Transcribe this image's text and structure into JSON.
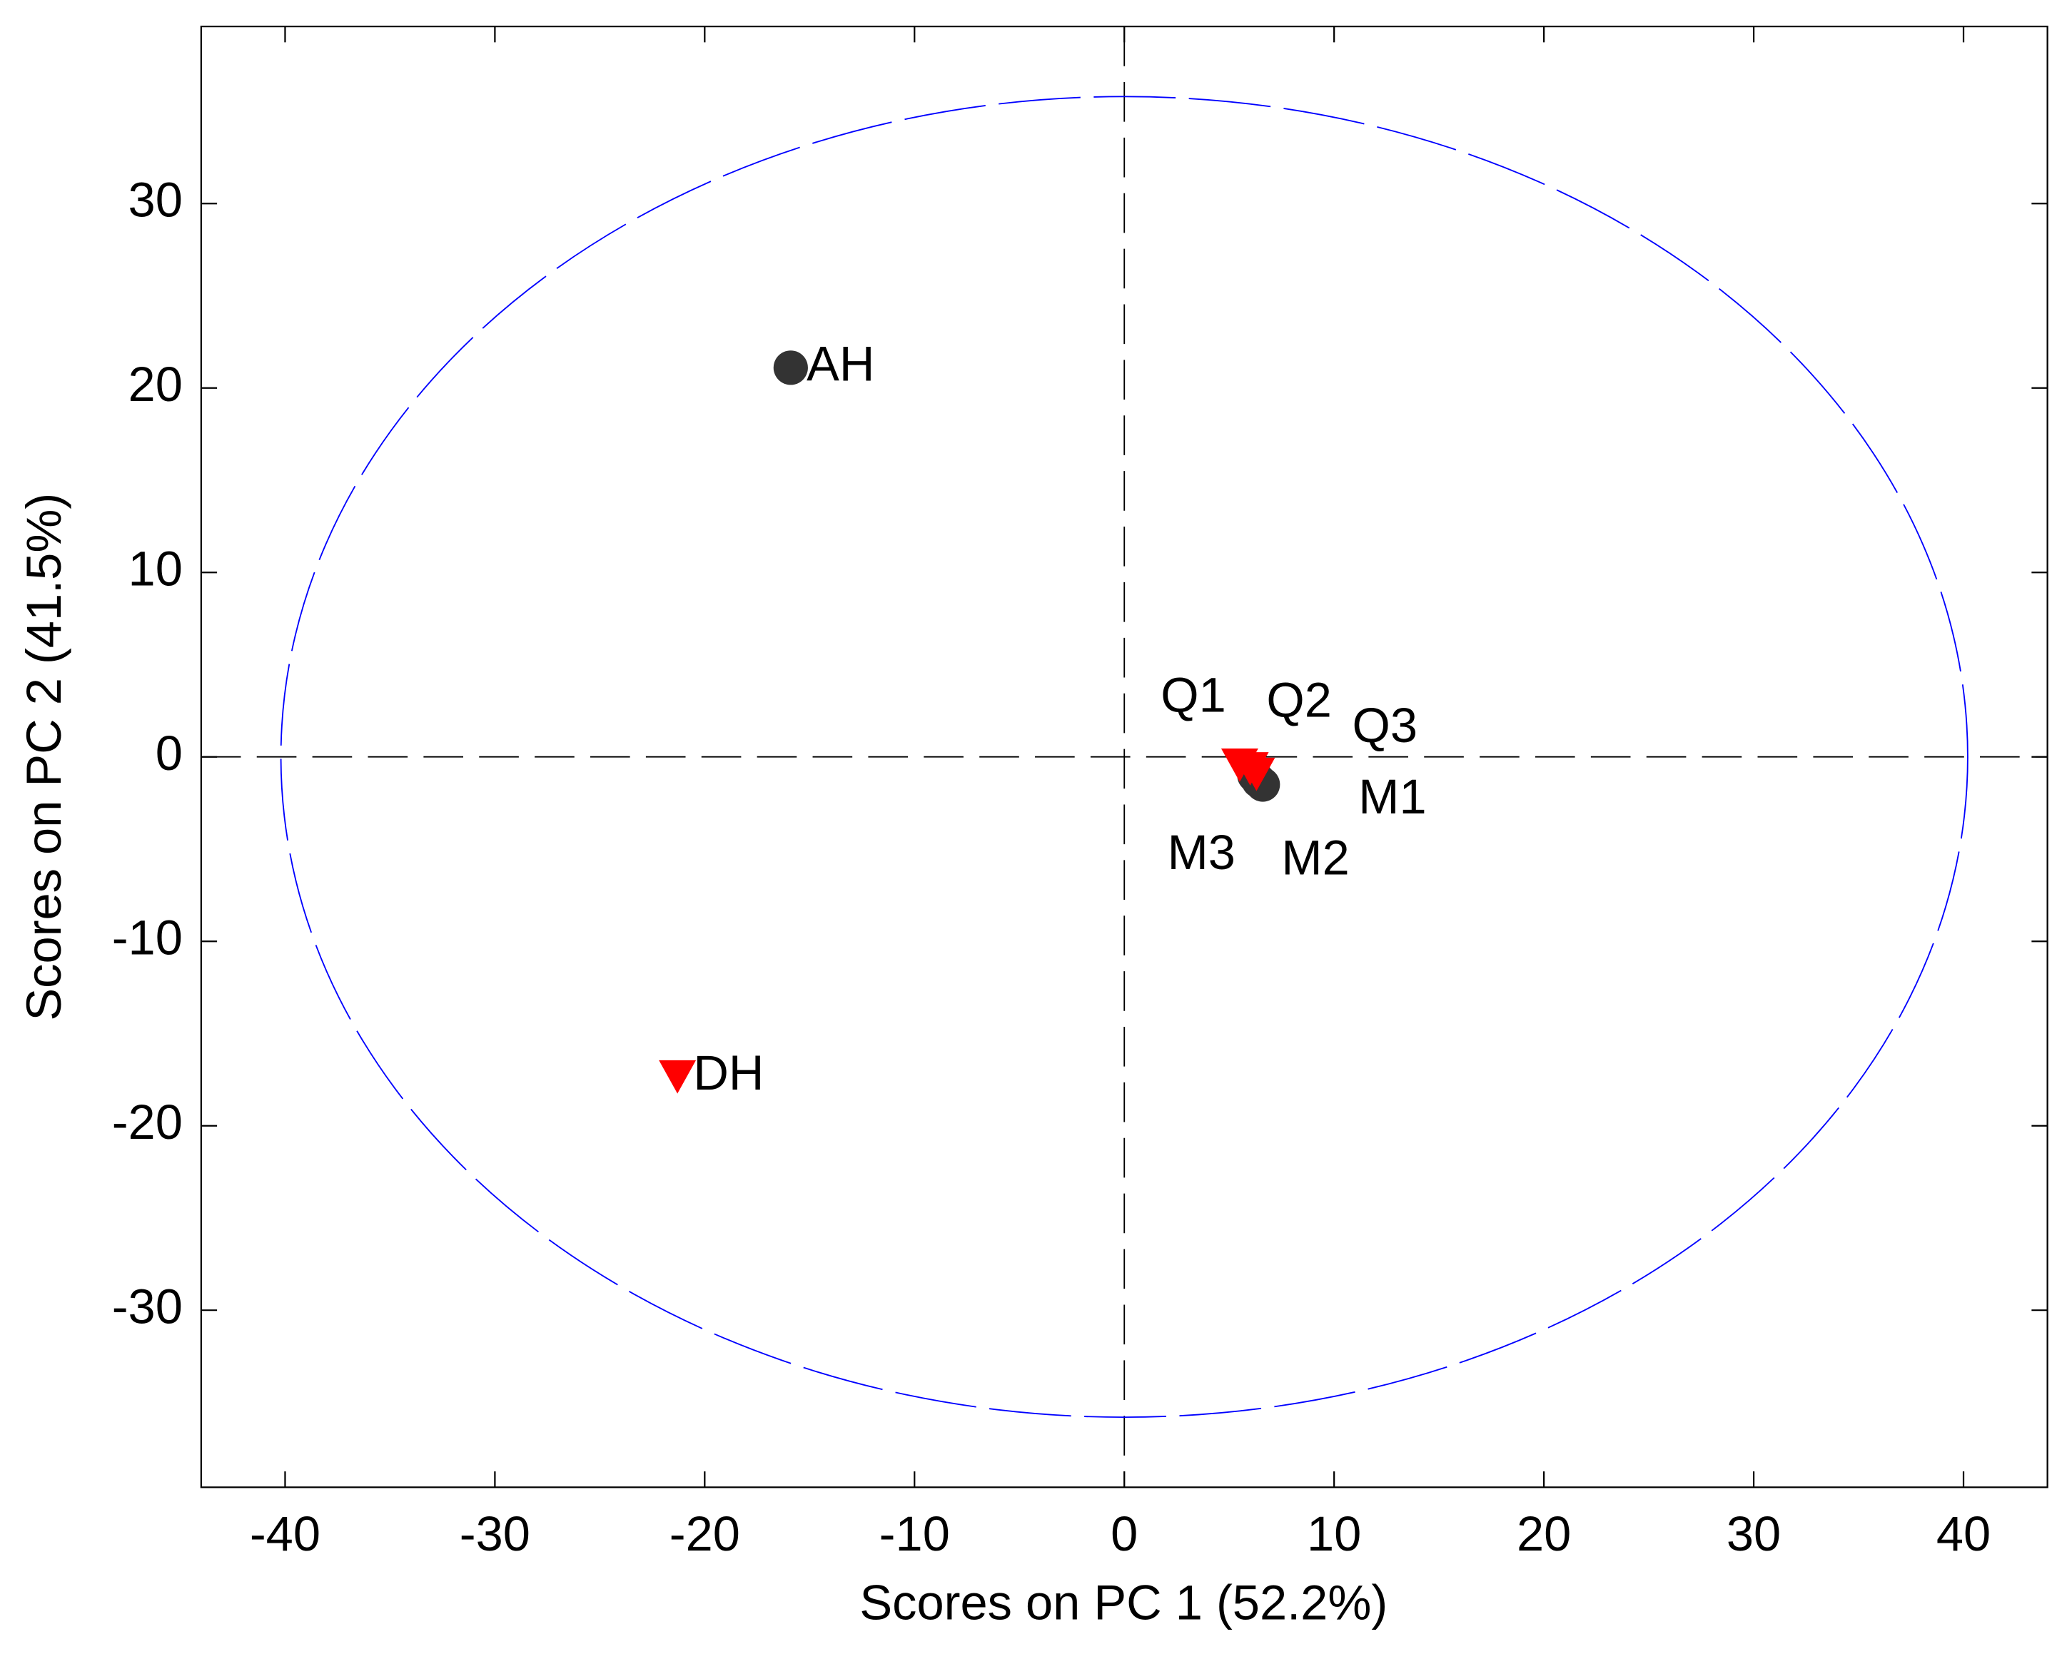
{
  "chart_data": {
    "type": "scatter",
    "xlabel": "Scores on PC 1 (52.2%)",
    "ylabel": "Scores on PC 2 (41.5%)",
    "xlim": [
      -44,
      44
    ],
    "ylim": [
      -39.6,
      39.6
    ],
    "xticks": [
      -40,
      -30,
      -20,
      -10,
      0,
      10,
      20,
      30,
      40
    ],
    "yticks": [
      -30,
      -20,
      -10,
      0,
      10,
      20,
      30
    ],
    "zero_lines": true,
    "ellipse": {
      "rx": 40.2,
      "ry": 35.8,
      "color": "#0000ff"
    },
    "points": [
      {
        "label": "AH",
        "x": -15.9,
        "y": 21.1,
        "shape": "circle",
        "color": "#333333"
      },
      {
        "label": "DH",
        "x": -21.3,
        "y": -17.2,
        "shape": "triangle-down",
        "color": "#ff0000"
      },
      {
        "label": "M3",
        "x": 6.2,
        "y": -1.0,
        "shape": "circle",
        "color": "#333333"
      },
      {
        "label": "M2",
        "x": 6.4,
        "y": -1.3,
        "shape": "circle",
        "color": "#333333"
      },
      {
        "label": "M1",
        "x": 6.6,
        "y": -1.5,
        "shape": "circle",
        "color": "#333333"
      },
      {
        "label": "Q1",
        "x": 5.5,
        "y": -0.3,
        "shape": "triangle-down",
        "color": "#ff0000"
      },
      {
        "label": "Q2",
        "x": 6.0,
        "y": -0.5,
        "shape": "triangle-down",
        "color": "#ff0000"
      },
      {
        "label": "Q3",
        "x": 6.3,
        "y": -0.8,
        "shape": "triangle-down",
        "color": "#ff0000"
      }
    ]
  }
}
